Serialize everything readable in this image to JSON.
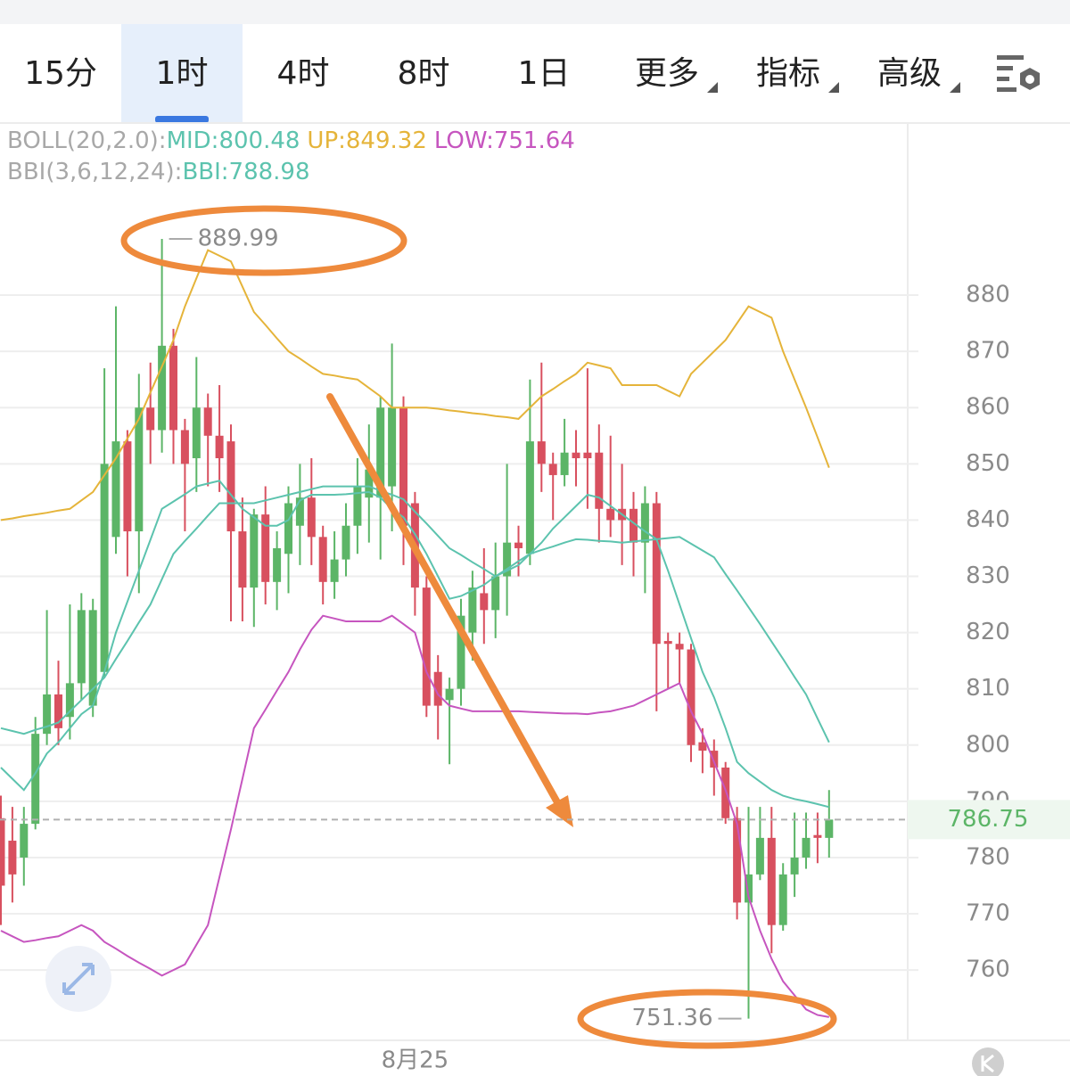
{
  "tabs": [
    {
      "label": "15分"
    },
    {
      "label": "1时",
      "selected": true
    },
    {
      "label": "4时"
    },
    {
      "label": "8时"
    },
    {
      "label": "1日"
    },
    {
      "label": "更多",
      "dropdown": true
    },
    {
      "label": "指标",
      "dropdown": true
    },
    {
      "label": "高级",
      "dropdown": true
    }
  ],
  "chart_data": {
    "type": "candlestick",
    "indicators": [
      {
        "title": "BOLL(20,2.0):",
        "series": [
          {
            "label": "MID:800.48",
            "color": "#5cc3ae",
            "values": [
              803,
              802.5,
              802,
              802.7,
              803.3,
              804,
              806,
              808,
              810,
              812,
              815.3,
              818.5,
              821.8,
              825,
              829.5,
              834,
              836.3,
              838.5,
              840.8,
              843,
              843,
              843,
              843,
              843.5,
              844,
              844.5,
              845,
              845.5,
              846,
              846,
              846,
              846,
              846,
              845.2,
              844.5,
              843.7,
              841.5,
              839.4,
              837.2,
              835,
              833.8,
              832.5,
              831.3,
              830,
              831.3,
              832.7,
              834,
              834.7,
              835.3,
              836,
              836.6,
              836.5,
              836.3,
              836.2,
              836,
              836.2,
              836.4,
              836.6,
              836.8,
              837,
              835.8,
              834.6,
              833.4,
              830.4,
              827.5,
              824.5,
              821.5,
              818.4,
              815.3,
              812.1,
              809,
              804.7,
              800.48
            ]
          },
          {
            "label": "UP:849.32",
            "color": "#e5b43a",
            "values": [
              840,
              840.3,
              840.7,
              841,
              841.3,
              841.7,
              842,
              843.5,
              845,
              848,
              851,
              854.5,
              858,
              862.7,
              867.3,
              872,
              878,
              883,
              888,
              887,
              886,
              881.5,
              877,
              874.7,
              872.3,
              870,
              868.7,
              867.3,
              866,
              865.7,
              865.3,
              865,
              863.5,
              862,
              860,
              860,
              860,
              860,
              859.8,
              859.5,
              859.3,
              859,
              858.8,
              858.5,
              858.3,
              858,
              860,
              862,
              863.3,
              864.7,
              866,
              868,
              867.5,
              867,
              864,
              864,
              864,
              864,
              863,
              862,
              866,
              868,
              870,
              872,
              875,
              878,
              877,
              876,
              870,
              865,
              860,
              854.7,
              849.32
            ]
          },
          {
            "label": "LOW:751.64",
            "color": "#c655bf",
            "values": [
              767,
              766,
              765,
              765.3,
              765.7,
              766,
              767,
              768,
              767,
              765,
              763.8,
              762.5,
              761.3,
              760.2,
              759,
              760,
              761,
              764.5,
              768,
              776.5,
              785,
              794,
              803,
              806.3,
              809.7,
              813,
              817,
              820.5,
              823,
              822.5,
              822,
              822,
              822,
              822,
              823,
              821.5,
              820,
              813,
              809,
              807,
              806.5,
              806,
              806,
              806,
              806,
              806,
              805.9,
              805.8,
              805.7,
              805.6,
              805.6,
              805.5,
              805.8,
              806,
              806.5,
              807,
              808,
              809,
              810,
              811,
              806,
              802,
              797,
              792,
              786,
              773,
              767,
              762,
              758,
              755.5,
              753,
              752,
              751.64
            ]
          }
        ]
      },
      {
        "title": "BBI(3,6,12,24):",
        "series": [
          {
            "label": "BBI:788.98",
            "color": "#5cc3ae",
            "values": [
              796,
              794,
              792,
              795,
              798.5,
              800.5,
              803,
              805.5,
              807,
              813,
              820,
              825.5,
              831,
              836.5,
              842,
              843.3,
              844.6,
              846,
              846.5,
              847,
              844.5,
              842,
              840.5,
              839,
              839,
              840,
              843.5,
              844.5,
              844.5,
              844.5,
              844.6,
              844.8,
              845,
              844,
              842,
              840.5,
              837.5,
              834,
              830,
              826,
              826.5,
              827.5,
              828.5,
              830,
              831,
              832,
              834,
              836,
              838.5,
              840.5,
              842.5,
              844.5,
              844,
              842.5,
              841,
              839.5,
              838,
              836.6,
              831,
              825,
              819,
              813,
              808.5,
              803,
              797,
              795,
              793.5,
              792,
              791,
              790.4,
              790,
              789.5,
              788.98
            ]
          }
        ]
      }
    ],
    "categories": [
      null,
      null,
      null,
      null,
      null,
      null,
      null,
      null,
      null,
      null,
      null,
      null,
      null,
      null,
      null,
      null,
      null,
      null,
      null,
      null,
      null,
      null,
      null,
      null,
      null,
      null,
      null,
      null,
      null,
      null,
      null,
      null,
      null,
      null,
      null,
      null,
      "8月25",
      null,
      null,
      null,
      null,
      null,
      null,
      null,
      null,
      null,
      null,
      null,
      null,
      null,
      null,
      null,
      null,
      null,
      null,
      null,
      null,
      null,
      null,
      null,
      null,
      null,
      null,
      null,
      null,
      null,
      null,
      null,
      null,
      null,
      null,
      null,
      null
    ],
    "open": [
      787,
      783,
      780,
      786,
      802,
      809,
      805,
      811,
      807,
      813,
      837,
      854,
      838,
      860,
      856,
      871,
      856,
      851,
      860,
      855,
      854,
      838,
      828,
      841,
      829,
      834,
      839,
      844,
      837,
      829,
      833,
      839,
      844,
      844,
      846,
      860,
      843,
      828,
      813,
      808,
      810,
      820,
      827,
      824,
      830,
      836,
      834,
      854,
      850,
      848,
      852,
      852,
      852,
      842,
      842,
      842,
      836,
      843,
      818.5,
      818,
      817,
      800.5,
      799,
      796,
      787,
      772,
      777,
      783.5,
      768,
      777,
      780,
      784,
      783.5
    ],
    "high": [
      791,
      789,
      789,
      805,
      824,
      815,
      825,
      827,
      826,
      867,
      878,
      856,
      866,
      868,
      889.99,
      874,
      858,
      869,
      862.5,
      864,
      857,
      844,
      842,
      846,
      838,
      846,
      850,
      851,
      839,
      838,
      843,
      851,
      857,
      862,
      871.4,
      862,
      845,
      830,
      816,
      812,
      826,
      831,
      835,
      836,
      850,
      839,
      865,
      868,
      852,
      858,
      856,
      867,
      857,
      855,
      850,
      845,
      846,
      845,
      820,
      820,
      818,
      803,
      801,
      797,
      789,
      789,
      789,
      789,
      779,
      788,
      788,
      788,
      792
    ],
    "low": [
      768,
      772,
      775,
      785,
      800,
      800,
      801,
      808,
      805,
      812,
      834,
      830,
      827,
      850,
      852,
      850,
      838,
      845,
      846,
      845,
      822,
      822,
      821,
      825,
      824,
      827,
      832,
      832,
      825,
      826,
      830,
      834,
      836,
      833,
      838,
      832,
      823,
      805,
      801,
      796.6,
      807,
      815,
      818,
      819,
      823,
      830,
      832,
      845,
      840,
      846,
      846,
      842,
      836,
      837,
      832,
      830,
      827,
      806,
      810,
      811,
      797,
      795,
      791,
      786,
      769,
      751.36,
      776,
      763,
      767,
      773,
      778,
      779,
      780
    ],
    "close": [
      775,
      777,
      786,
      802,
      809,
      803,
      811,
      824,
      824,
      850,
      854,
      838,
      860,
      856,
      871,
      856,
      850,
      860,
      855,
      851,
      838,
      828,
      841,
      829,
      835,
      843,
      844,
      837,
      829,
      833,
      839,
      846,
      849,
      860,
      860,
      839,
      828,
      807,
      807,
      810,
      823,
      828,
      824,
      830,
      836,
      835,
      854,
      850,
      848,
      852,
      851,
      851,
      842,
      840,
      840,
      836,
      843,
      818,
      818,
      817,
      800,
      799,
      796,
      787,
      772,
      777,
      783.5,
      768,
      777,
      780,
      783.5,
      783.5,
      786.75
    ],
    "up_color": "#5cb567",
    "down_color": "#d8505f",
    "ylim": [
      747.5,
      910.6
    ],
    "yticks": [
      760,
      770,
      780,
      790,
      800,
      810,
      820,
      830,
      840,
      850,
      860,
      870,
      880
    ],
    "grid": true
  }
}
